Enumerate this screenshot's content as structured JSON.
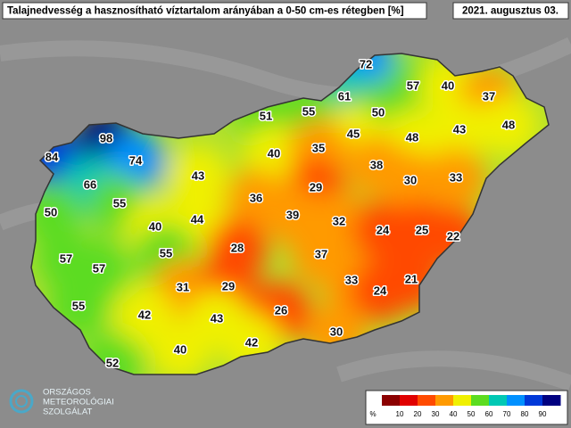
{
  "header": {
    "title": "Talajnedvesség a hasznosítható víztartalom arányában a 0-50 cm-es rétegben [%]",
    "date": "2021. augusztus 03."
  },
  "station_values": [
    72,
    57,
    40,
    37,
    61,
    55,
    51,
    50,
    43,
    48,
    45,
    48,
    98,
    40,
    35,
    84,
    74,
    38,
    43,
    30,
    33,
    66,
    29,
    36,
    55,
    50,
    39,
    32,
    44,
    40,
    24,
    25,
    22,
    28,
    37,
    55,
    57,
    57,
    33,
    21,
    31,
    29,
    24,
    55,
    26,
    42,
    43,
    30,
    42,
    40,
    52
  ],
  "legend": {
    "unit": "%",
    "range": [
      0,
      100
    ],
    "ticks": [
      10,
      20,
      30,
      40,
      50,
      60,
      70,
      80,
      90
    ],
    "colors": [
      "#8b0000",
      "#e00000",
      "#ff4a00",
      "#ff9a00",
      "#f0f000",
      "#5cdc20",
      "#00c8b4",
      "#0090ff",
      "#0038d8",
      "#000080"
    ]
  },
  "logo": {
    "lines": [
      "ORSZÁGOS",
      "METEOROLÓGIAI",
      "SZOLGÁLAT"
    ]
  }
}
